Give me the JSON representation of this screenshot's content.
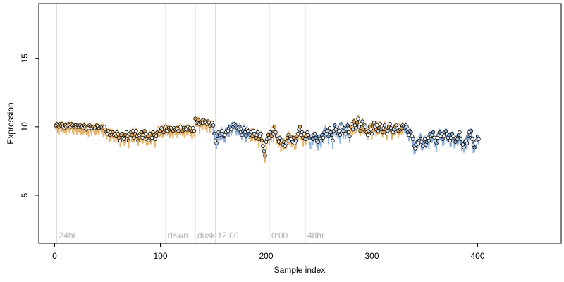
{
  "chart_data": {
    "type": "scatter",
    "title": "",
    "xlabel": "Sample index",
    "ylabel": "Expression",
    "xlim": [
      -15,
      479
    ],
    "ylim": [
      1.5,
      19.0
    ],
    "xticks": [
      0,
      100,
      200,
      300,
      400
    ],
    "yticks": [
      5,
      10,
      15
    ],
    "grid": false,
    "markers": [
      {
        "x": 2,
        "label": "24hr"
      },
      {
        "x": 105,
        "label": "dawn"
      },
      {
        "x": 133,
        "label": "dusk"
      },
      {
        "x": 152,
        "label": "12:00"
      },
      {
        "x": 203,
        "label": "0:00"
      },
      {
        "x": 237,
        "label": "48hr"
      }
    ],
    "colors": {
      "orange_band": "#e0a95c",
      "blue_band": "#7fa6d6",
      "marker_line": "#dddddd",
      "marker_text": "#b0b0b0",
      "point_edge": "#000000"
    },
    "series": [
      {
        "kind": "points",
        "x_start": 1,
        "x_step": 1,
        "values": [
          10.1,
          10.2,
          10.1,
          10.0,
          10.2,
          10.1,
          10.2,
          10.0,
          9.9,
          10.1,
          10.0,
          10.1,
          10.2,
          10.1,
          10.0,
          10.2,
          10.1,
          10.0,
          10.1,
          10.1,
          10.0,
          10.1,
          10.0,
          10.1,
          10.0,
          10.0,
          9.9,
          10.1,
          10.0,
          9.8,
          10.0,
          9.9,
          10.1,
          10.0,
          9.9,
          10.0,
          10.0,
          9.9,
          10.0,
          10.1,
          10.0,
          9.9,
          10.0,
          10.0,
          10.0,
          9.9,
          10.0,
          9.8,
          9.6,
          9.5,
          9.7,
          9.4,
          9.6,
          9.5,
          9.6,
          9.4,
          9.5,
          9.3,
          9.6,
          9.5,
          9.2,
          9.0,
          9.4,
          9.5,
          9.2,
          9.1,
          9.4,
          9.6,
          9.3,
          9.0,
          9.5,
          9.6,
          9.4,
          9.7,
          9.2,
          9.5,
          9.7,
          9.3,
          9.0,
          9.4,
          9.5,
          9.6,
          9.2,
          9.4,
          9.7,
          9.5,
          9.1,
          9.3,
          9.0,
          9.5,
          9.3,
          9.2,
          9.6,
          9.4,
          9.1,
          9.3,
          9.6,
          9.8,
          9.5,
          9.7,
          9.9,
          9.8,
          9.6,
          9.9,
          10.0,
          9.8,
          9.7,
          9.9,
          9.8,
          9.9,
          9.8,
          9.7,
          9.9,
          9.8,
          9.9,
          9.8,
          9.7,
          9.9,
          10.0,
          9.8,
          9.7,
          9.9,
          9.8,
          9.9,
          9.8,
          10.0,
          9.8,
          9.9,
          9.8,
          9.7,
          9.9,
          9.7,
          10.6,
          10.3,
          10.4,
          10.5,
          10.2,
          10.3,
          10.4,
          10.3,
          10.5,
          10.4,
          10.3,
          10.2,
          10.4,
          10.3,
          10.1,
          10.2,
          10.3,
          10.1,
          9.5,
          9.0,
          8.8,
          9.3,
          9.6,
          9.4,
          9.5,
          9.7,
          9.5,
          9.3,
          9.4,
          9.6,
          9.8,
          9.7,
          9.9,
          10.0,
          9.8,
          10.1,
          10.0,
          10.2,
          10.1,
          10.0,
          9.9,
          9.8,
          10.0,
          9.6,
          9.4,
          9.7,
          9.9,
          9.6,
          9.3,
          9.8,
          9.7,
          9.5,
          9.4,
          9.6,
          9.3,
          9.7,
          9.5,
          9.2,
          9.4,
          9.6,
          9.1,
          9.3,
          9.5,
          9.0,
          8.6,
          8.2,
          7.9,
          8.9,
          9.1,
          9.4,
          9.2,
          9.6,
          9.3,
          9.8,
          9.5,
          10.0,
          9.6,
          9.3,
          9.1,
          8.9,
          9.2,
          8.8,
          9.0,
          8.7,
          8.9,
          8.6,
          8.8,
          9.2,
          9.4,
          9.0,
          9.3,
          9.1,
          8.9,
          9.2,
          8.8,
          9.0,
          9.3,
          9.5,
          9.8,
          10.0,
          9.4,
          9.6,
          9.2,
          9.5,
          9.1,
          9.3,
          9.6,
          9.4,
          9.2,
          9.0,
          9.3,
          9.1,
          9.4,
          9.5,
          9.2,
          9.0,
          8.9,
          9.3,
          9.1,
          9.0,
          9.4,
          9.2,
          9.6,
          9.8,
          9.5,
          9.7,
          9.3,
          9.9,
          9.6,
          9.4,
          9.0,
          9.7,
          10.1,
          9.8,
          10.0,
          9.5,
          9.7,
          9.4,
          10.2,
          10.0,
          9.7,
          9.9,
          9.5,
          9.8,
          10.1,
          9.6,
          9.3,
          10.0,
          10.2,
          9.8,
          10.4,
          10.1,
          9.9,
          10.3,
          10.6,
          10.0,
          9.7,
          10.2,
          10.4,
          9.8,
          10.1,
          10.0,
          9.6,
          9.4,
          9.7,
          10.0,
          9.8,
          9.5,
          10.2,
          10.3,
          10.0,
          9.8,
          10.1,
          9.7,
          9.9,
          10.2,
          9.8,
          9.6,
          9.9,
          10.1,
          9.8,
          9.5,
          9.7,
          10.0,
          10.2,
          9.9,
          9.7,
          9.6,
          9.8,
          10.0,
          10.1,
          9.9,
          9.7,
          10.0,
          9.8,
          9.9,
          10.1,
          10.0,
          9.9,
          10.1,
          10.0,
          9.6,
          9.4,
          9.7,
          9.6,
          9.3,
          9.1,
          8.6,
          8.4,
          8.7,
          8.9,
          8.8,
          9.0,
          9.3,
          8.9,
          8.6,
          8.8,
          9.1,
          8.7,
          8.9,
          9.2,
          9.0,
          9.5,
          9.3,
          9.4,
          9.6,
          9.2,
          9.0,
          8.8,
          9.2,
          9.4,
          9.6,
          9.3,
          9.5,
          9.1,
          9.3,
          9.6,
          9.7,
          9.5,
          9.2,
          9.4,
          9.0,
          9.2,
          9.5,
          9.3,
          9.0,
          8.9,
          9.2,
          9.1,
          9.4,
          9.6,
          9.1,
          8.8,
          8.7,
          8.5,
          8.9,
          9.0,
          8.8,
          9.3,
          9.6,
          9.4,
          9.7,
          9.1,
          8.7,
          8.5,
          8.8,
          9.0,
          9.3,
          9.1
        ]
      }
    ]
  }
}
